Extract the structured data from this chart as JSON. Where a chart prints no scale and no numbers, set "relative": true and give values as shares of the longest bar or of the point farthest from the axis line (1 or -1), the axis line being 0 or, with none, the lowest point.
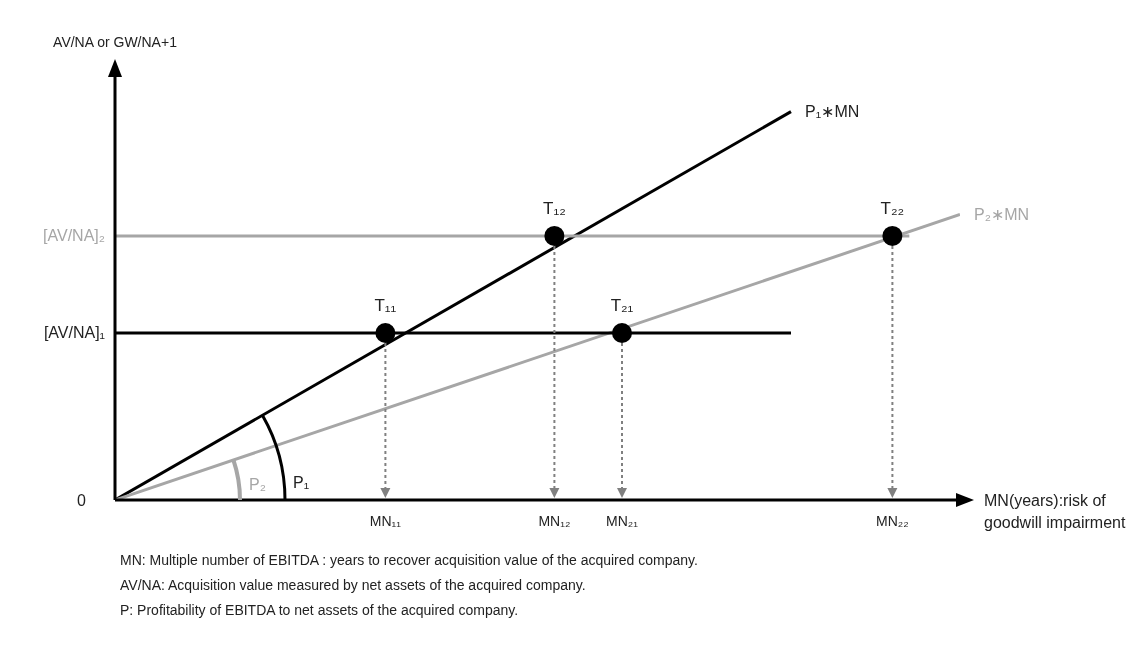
{
  "chart_data": {
    "type": "line",
    "relative": true,
    "ylabel": "AV/NA or GW/NA+1",
    "xlabel": "MN(years):risk of goodwill impairment",
    "categories": [
      null,
      null,
      null,
      null,
      null,
      null,
      null,
      null,
      null,
      null,
      null,
      null,
      null,
      null,
      null,
      null,
      "MN₁₁",
      null,
      null,
      null,
      null,
      null,
      null,
      null,
      null,
      null,
      "MN₁₂",
      null,
      null,
      null,
      "MN₂₁",
      null,
      null,
      null,
      null,
      null,
      null,
      null,
      null,
      null,
      null,
      null,
      null,
      null,
      null,
      null,
      "MN₂₂",
      null,
      null,
      null,
      null
    ],
    "series": [
      {
        "name": "P₁∗MN",
        "color": "#000000",
        "values": [
          0,
          null,
          null,
          null,
          null,
          null,
          null,
          null,
          null,
          null,
          null,
          null,
          null,
          null,
          null,
          null,
          null,
          null,
          null,
          null,
          null,
          null,
          null,
          null,
          null,
          null,
          null,
          null,
          null,
          null,
          null,
          null,
          null,
          null,
          null,
          null,
          null,
          null,
          null,
          null,
          1,
          null,
          null,
          null,
          null,
          null,
          null,
          null,
          null,
          null,
          null
        ]
      },
      {
        "name": "P₂∗MN",
        "color": "#a6a6a6",
        "values": [
          0,
          null,
          null,
          null,
          null,
          null,
          null,
          null,
          null,
          null,
          null,
          null,
          null,
          null,
          null,
          null,
          null,
          null,
          null,
          null,
          null,
          null,
          null,
          null,
          null,
          null,
          null,
          null,
          null,
          null,
          null,
          null,
          null,
          null,
          null,
          null,
          null,
          null,
          null,
          null,
          null,
          null,
          null,
          null,
          null,
          null,
          null,
          null,
          null,
          null,
          0.735
        ]
      },
      {
        "name": "[AV/NA]₂",
        "color": "#a6a6a6",
        "values": [
          0.68,
          null,
          null,
          null,
          null,
          null,
          null,
          null,
          null,
          null,
          null,
          null,
          null,
          null,
          null,
          null,
          null,
          null,
          null,
          null,
          null,
          null,
          null,
          null,
          null,
          null,
          null,
          null,
          null,
          null,
          null,
          null,
          null,
          null,
          null,
          null,
          null,
          null,
          null,
          null,
          null,
          null,
          null,
          null,
          null,
          null,
          null,
          0.68,
          null,
          null,
          null
        ]
      },
      {
        "name": "[AV/NA]₁",
        "color": "#000000",
        "values": [
          0.43,
          null,
          null,
          null,
          null,
          null,
          null,
          null,
          null,
          null,
          null,
          null,
          null,
          null,
          null,
          null,
          null,
          null,
          null,
          null,
          null,
          null,
          null,
          null,
          null,
          null,
          null,
          null,
          null,
          null,
          null,
          null,
          null,
          null,
          null,
          null,
          null,
          null,
          null,
          null,
          0.43,
          null,
          null,
          null,
          null,
          null,
          null,
          null,
          null,
          null,
          null
        ]
      },
      {
        "type": "scatter",
        "color": "#000000",
        "marker": "circle",
        "values": [
          null,
          null,
          null,
          null,
          null,
          null,
          null,
          null,
          null,
          null,
          null,
          null,
          null,
          null,
          null,
          null,
          0.43,
          null,
          null,
          null,
          null,
          null,
          null,
          null,
          null,
          null,
          0.68,
          null,
          null,
          null,
          0.43,
          null,
          null,
          null,
          null,
          null,
          null,
          null,
          null,
          null,
          null,
          null,
          null,
          null,
          null,
          null,
          0.68,
          null,
          null,
          null,
          null
        ]
      }
    ],
    "annotations": [
      {
        "text": "T₁₁",
        "x": "MN₁₁",
        "y": 0.43
      },
      {
        "text": "T₁₂",
        "x": "MN₁₂",
        "y": 0.68
      },
      {
        "text": "T₂₁",
        "x": "MN₂₁",
        "y": 0.43
      },
      {
        "text": "T₂₂",
        "x": "MN₂₂",
        "y": 0.68
      },
      "0",
      "P₁",
      "P₂",
      "MN: Multiple number of EBITDA : years to recover acquisition value of the acquired company.",
      "AV/NA: Acquisition value measured by net assets of the acquired company.",
      "P: Profitability of EBITDA to net assets of the acquired  company."
    ]
  }
}
